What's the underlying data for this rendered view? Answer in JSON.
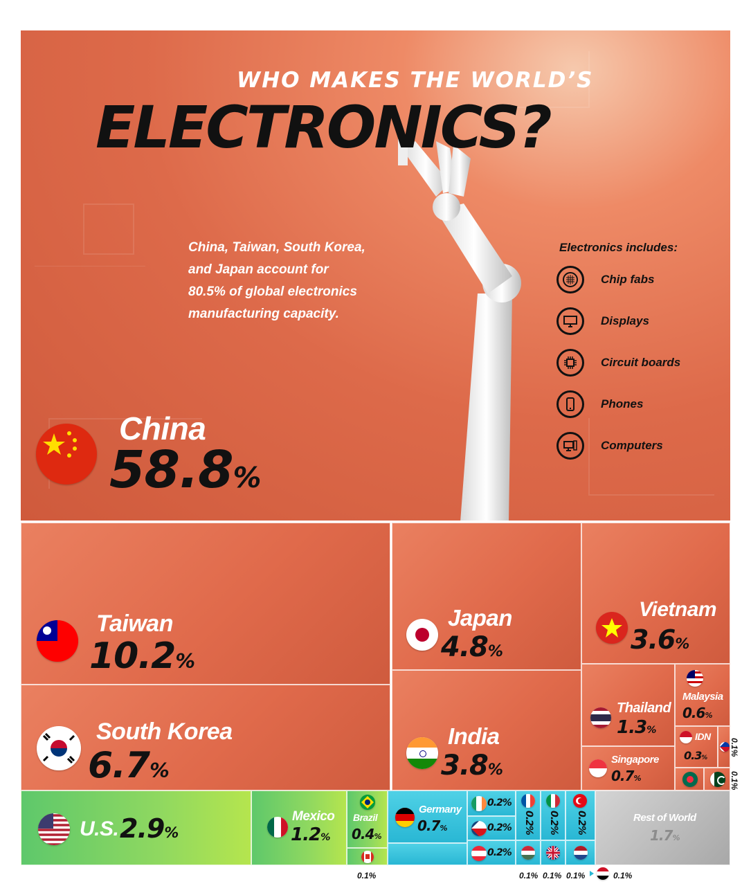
{
  "title": {
    "line1": "WHO MAKES THE WORLD’S",
    "line2": "ELECTRONICS?"
  },
  "intro": {
    "lines": [
      "China, Taiwan, South Korea,",
      "and Japan account for",
      "80.5% of global electronics",
      "manufacturing capacity."
    ]
  },
  "includes": {
    "title": "Electronics includes:",
    "items": [
      {
        "label": "Chip fabs",
        "icon": "wafer-icon"
      },
      {
        "label": "Displays",
        "icon": "monitor-icon"
      },
      {
        "label": "Circuit boards",
        "icon": "chip-icon"
      },
      {
        "label": "Phones",
        "icon": "phone-icon"
      },
      {
        "label": "Computers",
        "icon": "computer-icon"
      }
    ]
  },
  "unit": "%",
  "chart_data": {
    "type": "treemap",
    "title": "WHO MAKES THE WORLD’S ELECTRONICS?",
    "unit": "%",
    "items": [
      {
        "name": "China",
        "value": 58.8
      },
      {
        "name": "Taiwan",
        "value": 10.2
      },
      {
        "name": "South Korea",
        "value": 6.7
      },
      {
        "name": "Japan",
        "value": 4.8
      },
      {
        "name": "India",
        "value": 3.8
      },
      {
        "name": "Vietnam",
        "value": 3.6
      },
      {
        "name": "U.S.",
        "value": 2.9
      },
      {
        "name": "Thailand",
        "value": 1.3
      },
      {
        "name": "Mexico",
        "value": 1.2
      },
      {
        "name": "Singapore",
        "value": 0.7
      },
      {
        "name": "Germany",
        "value": 0.7
      },
      {
        "name": "Malaysia",
        "value": 0.6
      },
      {
        "name": "Brazil",
        "value": 0.4
      },
      {
        "name": "IDN",
        "value": 0.3
      },
      {
        "name": "",
        "flag": "ireland",
        "value": 0.2
      },
      {
        "name": "",
        "flag": "czechia",
        "value": 0.2
      },
      {
        "name": "",
        "flag": "austria",
        "value": 0.2
      },
      {
        "name": "",
        "flag": "france",
        "value": 0.2
      },
      {
        "name": "",
        "flag": "italy",
        "value": 0.2
      },
      {
        "name": "",
        "flag": "turkey",
        "value": 0.2
      },
      {
        "name": "",
        "flag": "hungary",
        "value": 0.1
      },
      {
        "name": "",
        "flag": "uk",
        "value": 0.1
      },
      {
        "name": "",
        "flag": "netherlands",
        "value": 0.1
      },
      {
        "name": "",
        "flag": "egypt",
        "value": 0.1
      },
      {
        "name": "",
        "flag": "canada",
        "value": 0.1
      },
      {
        "name": "",
        "flag": "philippines",
        "value": 0.1
      },
      {
        "name": "",
        "flag": "pakistan",
        "value": 0.1
      },
      {
        "name": "",
        "flag": "bangladesh",
        "value": 0.1
      },
      {
        "name": "Rest of World",
        "value": 1.7
      }
    ]
  },
  "tiles": {
    "china": {
      "name": "China",
      "value": "58.8"
    },
    "taiwan": {
      "name": "Taiwan",
      "value": "10.2"
    },
    "korea": {
      "name": "South Korea",
      "value": "6.7"
    },
    "japan": {
      "name": "Japan",
      "value": "4.8"
    },
    "india": {
      "name": "India",
      "value": "3.8"
    },
    "vietnam": {
      "name": "Vietnam",
      "value": "3.6"
    },
    "us": {
      "name": "U.S.",
      "value": "2.9"
    },
    "thailand": {
      "name": "Thailand",
      "value": "1.3"
    },
    "mexico": {
      "name": "Mexico",
      "value": "1.2"
    },
    "singapore": {
      "name": "Singapore",
      "value": "0.7"
    },
    "germany": {
      "name": "Germany",
      "value": "0.7"
    },
    "malaysia": {
      "name": "Malaysia",
      "value": "0.6"
    },
    "brazil": {
      "name": "Brazil",
      "value": "0.4"
    },
    "idn": {
      "name": "IDN",
      "value": "0.3"
    },
    "rest": {
      "name": "Rest of World",
      "value": "1.7"
    },
    "small": {
      "p2": "0.2%",
      "p1": "0.1%"
    }
  },
  "colors": {
    "hero": "#dd6a4a",
    "asia_tiles": "#e06a4b",
    "americas_tiles": "#7dd465",
    "europe_tiles": "#2fbcd8",
    "rest_tile": "#b5b5b5"
  }
}
